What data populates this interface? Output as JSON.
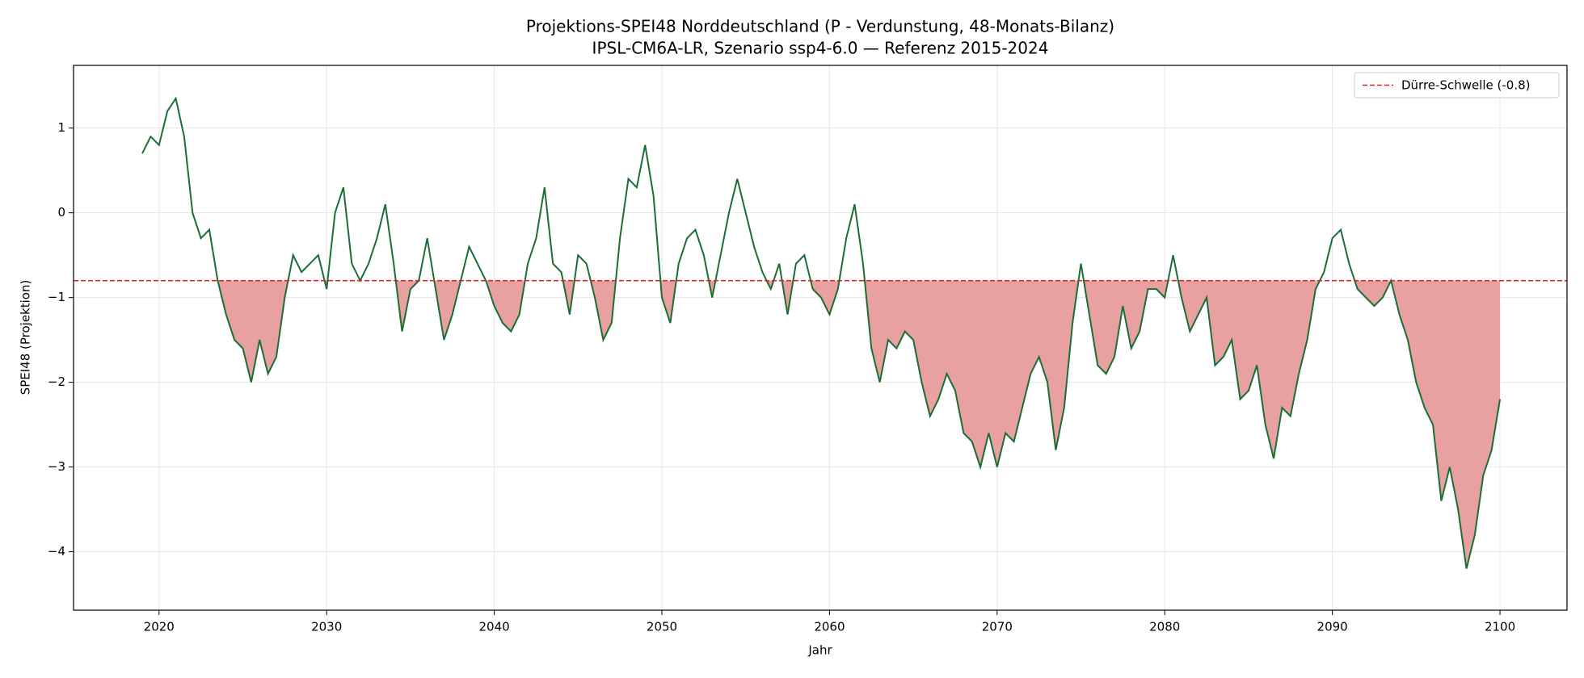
{
  "chart_data": {
    "type": "line",
    "title": "Projektions-SPEI48 Norddeutschland (P - Verdunstung, 48-Monats-Bilanz)",
    "subtitle": "IPSL-CM6A-LR, Szenario ssp4-6.0 — Referenz 2015-2024",
    "x_label": "Jahr",
    "y_label": "SPEI48 (Projektion)",
    "xlim": [
      2014.9,
      2104
    ],
    "ylim": [
      -4.69,
      1.74
    ],
    "xticks": [
      2020,
      2030,
      2040,
      2050,
      2060,
      2070,
      2080,
      2090,
      2100
    ],
    "yticks": [
      {
        "value": -4,
        "label": "−4"
      },
      {
        "value": -3,
        "label": "−3"
      },
      {
        "value": -2,
        "label": "−2"
      },
      {
        "value": -1,
        "label": "−1"
      },
      0,
      1
    ],
    "grid": true,
    "threshold": {
      "name": "Dürre-Schwelle (-0.8)",
      "value": -0.8,
      "color": "#d62728"
    },
    "fill_color": "#e8a0a0",
    "legend": "upper right",
    "x": [
      2019,
      2019.5,
      2020,
      2020.5,
      2021,
      2021.5,
      2022,
      2022.5,
      2023,
      2023.5,
      2024,
      2024.5,
      2025,
      2025.5,
      2026,
      2026.5,
      2027,
      2027.5,
      2028,
      2028.5,
      2029,
      2029.5,
      2030,
      2030.5,
      2031,
      2031.5,
      2032,
      2032.5,
      2033,
      2033.5,
      2034,
      2034.5,
      2035,
      2035.5,
      2036,
      2036.5,
      2037,
      2037.5,
      2038,
      2038.5,
      2039,
      2039.5,
      2040,
      2040.5,
      2041,
      2041.5,
      2042,
      2042.5,
      2043,
      2043.5,
      2044,
      2044.5,
      2045,
      2045.5,
      2046,
      2046.5,
      2047,
      2047.5,
      2048,
      2048.5,
      2049,
      2049.5,
      2050,
      2050.5,
      2051,
      2051.5,
      2052,
      2052.5,
      2053,
      2053.5,
      2054,
      2054.5,
      2055,
      2055.5,
      2056,
      2056.5,
      2057,
      2057.5,
      2058,
      2058.5,
      2059,
      2059.5,
      2060,
      2060.5,
      2061,
      2061.5,
      2062,
      2062.5,
      2063,
      2063.5,
      2064,
      2064.5,
      2065,
      2065.5,
      2066,
      2066.5,
      2067,
      2067.5,
      2068,
      2068.5,
      2069,
      2069.5,
      2070,
      2070.5,
      2071,
      2071.5,
      2072,
      2072.5,
      2073,
      2073.5,
      2074,
      2074.5,
      2075,
      2075.5,
      2076,
      2076.5,
      2077,
      2077.5,
      2078,
      2078.5,
      2079,
      2079.5,
      2080,
      2080.5,
      2081,
      2081.5,
      2082,
      2082.5,
      2083,
      2083.5,
      2084,
      2084.5,
      2085,
      2085.5,
      2086,
      2086.5,
      2087,
      2087.5,
      2088,
      2088.5,
      2089,
      2089.5,
      2090,
      2090.5,
      2091,
      2091.5,
      2092,
      2092.5,
      2093,
      2093.5,
      2094,
      2094.5,
      2095,
      2095.5,
      2096,
      2096.5,
      2097,
      2097.5,
      2098,
      2098.5,
      2099,
      2099.5,
      2100
    ],
    "series": [
      {
        "name": "SPEI48",
        "color": "#1a6e35",
        "values": [
          0.7,
          0.9,
          0.8,
          1.2,
          1.35,
          0.9,
          0.0,
          -0.3,
          -0.2,
          -0.8,
          -1.2,
          -1.5,
          -1.6,
          -2.0,
          -1.5,
          -1.9,
          -1.7,
          -1.0,
          -0.5,
          -0.7,
          -0.6,
          -0.5,
          -0.9,
          0.0,
          0.3,
          -0.6,
          -0.8,
          -0.6,
          -0.3,
          0.1,
          -0.6,
          -1.4,
          -0.9,
          -0.8,
          -0.3,
          -0.9,
          -1.5,
          -1.2,
          -0.8,
          -0.4,
          -0.6,
          -0.8,
          -1.1,
          -1.3,
          -1.4,
          -1.2,
          -0.6,
          -0.3,
          0.3,
          -0.6,
          -0.7,
          -1.2,
          -0.5,
          -0.6,
          -1.0,
          -1.5,
          -1.3,
          -0.3,
          0.4,
          0.3,
          0.8,
          0.2,
          -1.0,
          -1.3,
          -0.6,
          -0.3,
          -0.2,
          -0.5,
          -1.0,
          -0.5,
          0.0,
          0.4,
          0.0,
          -0.4,
          -0.7,
          -0.9,
          -0.6,
          -1.2,
          -0.6,
          -0.5,
          -0.9,
          -1.0,
          -1.2,
          -0.9,
          -0.3,
          0.1,
          -0.6,
          -1.6,
          -2.0,
          -1.5,
          -1.6,
          -1.4,
          -1.5,
          -2.0,
          -2.4,
          -2.2,
          -1.9,
          -2.1,
          -2.6,
          -2.7,
          -3.0,
          -2.6,
          -3.0,
          -2.6,
          -2.7,
          -2.3,
          -1.9,
          -1.7,
          -2.0,
          -2.8,
          -2.3,
          -1.3,
          -0.6,
          -1.2,
          -1.8,
          -1.9,
          -1.7,
          -1.1,
          -1.6,
          -1.4,
          -0.9,
          -0.9,
          -1.0,
          -0.5,
          -1.0,
          -1.4,
          -1.2,
          -1.0,
          -1.8,
          -1.7,
          -1.5,
          -2.2,
          -2.1,
          -1.8,
          -2.5,
          -2.9,
          -2.3,
          -2.4,
          -1.9,
          -1.5,
          -0.9,
          -0.7,
          -0.3,
          -0.2,
          -0.6,
          -0.9,
          -1.0,
          -1.1,
          -1.0,
          -0.8,
          -1.2,
          -1.5,
          -2.0,
          -2.3,
          -2.5,
          -3.4,
          -3.0,
          -3.5,
          -4.2,
          -3.8,
          -3.1,
          -2.8,
          -2.2
        ]
      }
    ]
  }
}
